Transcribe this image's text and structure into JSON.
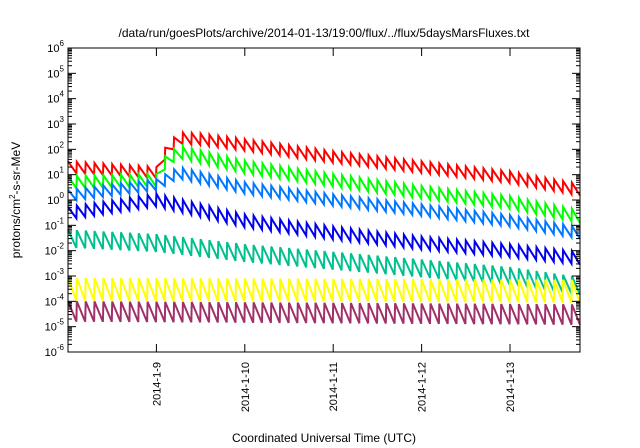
{
  "chart_data": {
    "type": "line",
    "title": "/data/run/goesPlots/archive/2014-01-13/19:00/flux/../flux/5daysMarsFluxes.txt",
    "xlabel": "Coordinated Universal Time (UTC)",
    "ylabel": {
      "base": "protons/cm",
      "sup": "2",
      "rest": "-s-sr-MeV"
    },
    "x_axis": {
      "type": "date",
      "range": [
        "2014-01-08T00:00",
        "2014-01-13T19:00"
      ],
      "ticks": [
        "2014-1-9",
        "2014-1-10",
        "2014-1-11",
        "2014-1-12",
        "2014-1-13"
      ]
    },
    "y_axis": {
      "scale": "log",
      "range": [
        1e-06,
        1000000.0
      ],
      "ticks": [
        {
          "base": "10",
          "exp": "-6"
        },
        {
          "base": "10",
          "exp": "-5"
        },
        {
          "base": "10",
          "exp": "-4"
        },
        {
          "base": "10",
          "exp": "-3"
        },
        {
          "base": "10",
          "exp": "-2"
        },
        {
          "base": "10",
          "exp": "-1"
        },
        {
          "base": "10",
          "exp": "0"
        },
        {
          "base": "10",
          "exp": "1"
        },
        {
          "base": "10",
          "exp": "2"
        },
        {
          "base": "10",
          "exp": "3"
        },
        {
          "base": "10",
          "exp": "4"
        },
        {
          "base": "10",
          "exp": "5"
        },
        {
          "base": "10",
          "exp": "6"
        }
      ]
    },
    "grid": false,
    "legend": "none",
    "sawtooth_period_days": 0.1,
    "series": [
      {
        "color": "#ff0000",
        "x": [
          "2014-01-08T00:00",
          "2014-01-09T00:00",
          "2014-01-09T01:00",
          "2014-01-09T06:00",
          "2014-01-09T12:00",
          "2014-01-10T00:00",
          "2014-01-11T00:00",
          "2014-01-12T00:00",
          "2014-01-13T00:00",
          "2014-01-13T19:00"
        ],
        "y": [
          20,
          12,
          40,
          280,
          250,
          150,
          50,
          20,
          8,
          2.5
        ],
        "swing": 0.45
      },
      {
        "color": "#00ff00",
        "x": [
          "2014-01-08T00:00",
          "2014-01-09T00:00",
          "2014-01-09T01:00",
          "2014-01-09T06:00",
          "2014-01-10T00:00",
          "2014-01-11T00:00",
          "2014-01-12T00:00",
          "2014-01-13T00:00",
          "2014-01-13T19:00"
        ],
        "y": [
          5,
          6,
          20,
          80,
          20,
          6,
          2,
          0.8,
          0.22
        ],
        "swing": 0.5
      },
      {
        "color": "#0077ff",
        "x": [
          "2014-01-08T00:00",
          "2014-01-09T00:00",
          "2014-01-09T06:00",
          "2014-01-10T00:00",
          "2014-01-11T00:00",
          "2014-01-12T00:00",
          "2014-01-13T00:00",
          "2014-01-13T19:00"
        ],
        "y": [
          1.5,
          4,
          12,
          3,
          1,
          0.4,
          0.15,
          0.05
        ],
        "swing": 0.45
      },
      {
        "color": "#0000ee",
        "x": [
          "2014-01-08T00:00",
          "2014-01-09T00:00",
          "2014-01-10T00:00",
          "2014-01-11T00:00",
          "2014-01-12T00:00",
          "2014-01-13T00:00",
          "2014-01-13T19:00"
        ],
        "y": [
          0.3,
          1,
          0.15,
          0.05,
          0.02,
          0.01,
          0.005
        ],
        "swing": 0.5
      },
      {
        "color": "#00c090",
        "x": [
          "2014-01-08T00:00",
          "2014-01-09T00:00",
          "2014-01-10T00:00",
          "2014-01-11T00:00",
          "2014-01-12T00:00",
          "2014-01-13T00:00",
          "2014-01-13T19:00"
        ],
        "y": [
          0.03,
          0.02,
          0.008,
          0.004,
          0.002,
          0.001,
          0.0004
        ],
        "swing": 0.7
      },
      {
        "color": "#ffff00",
        "x": [
          "2014-01-08T00:00",
          "2014-01-13T19:00"
        ],
        "y": [
          0.0003,
          0.00025
        ],
        "swing": 0.9
      },
      {
        "color": "#a0306a",
        "x": [
          "2014-01-08T00:00",
          "2014-01-13T19:00"
        ],
        "y": [
          4e-05,
          3e-05
        ],
        "swing": 0.8
      }
    ]
  }
}
